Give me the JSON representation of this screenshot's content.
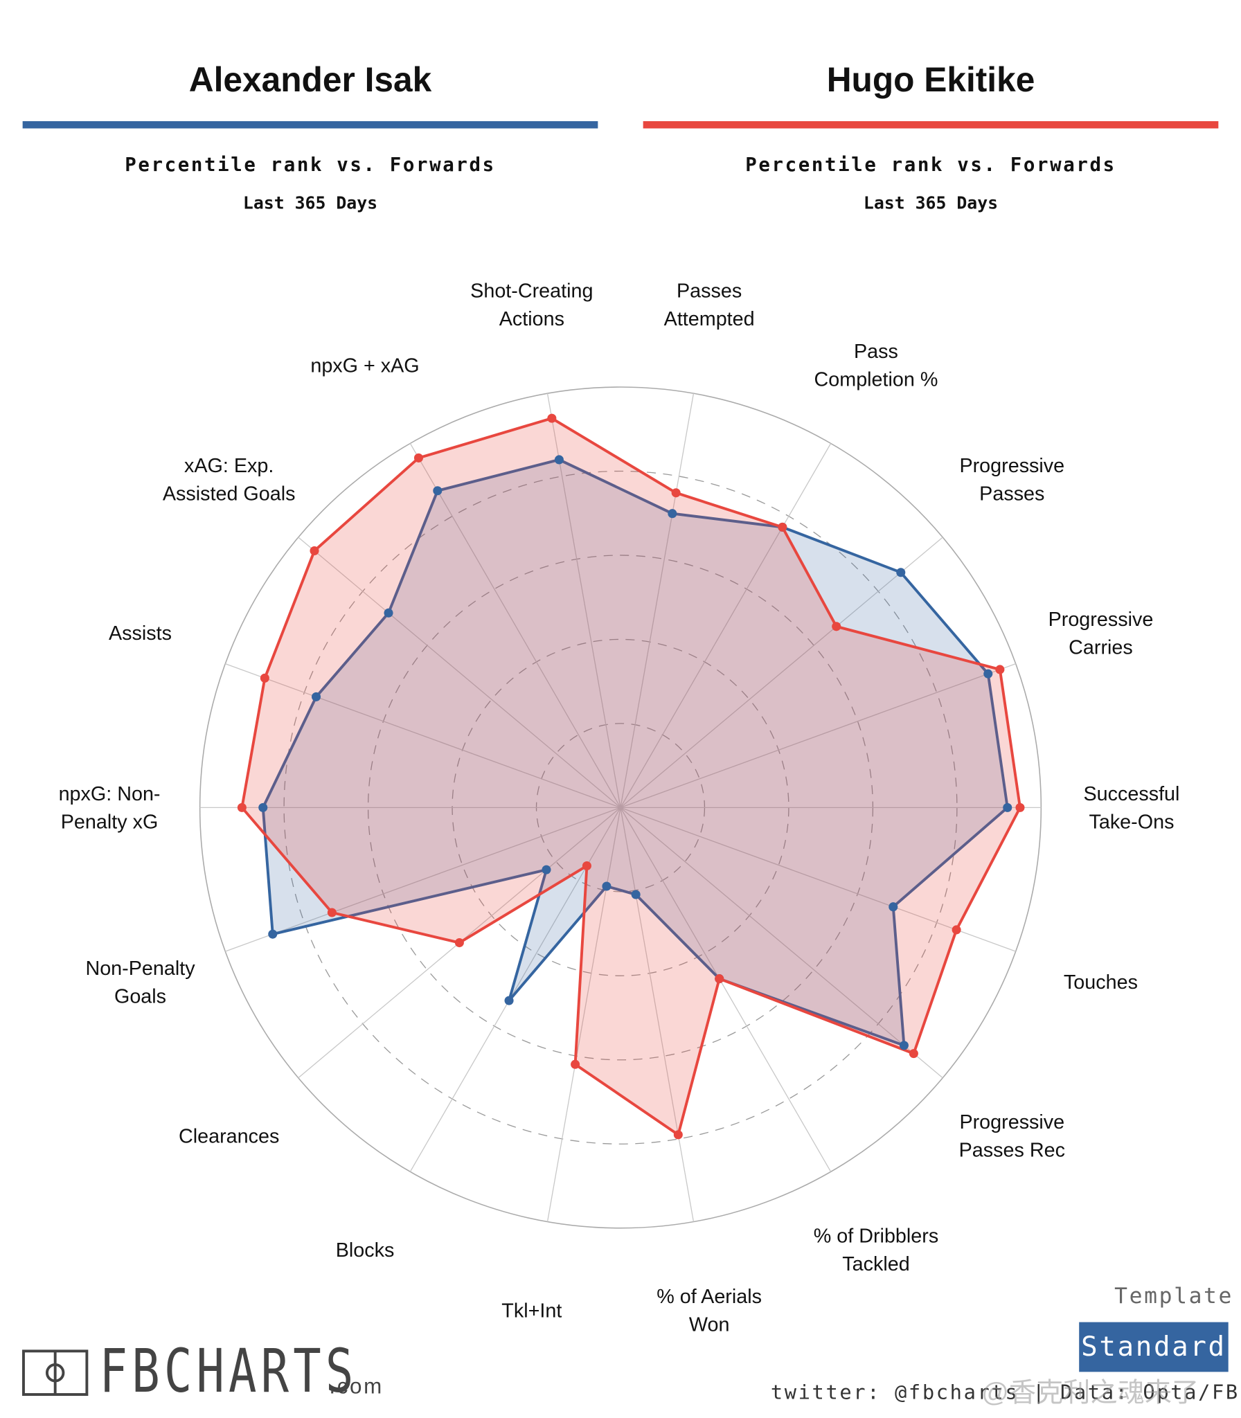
{
  "header": {
    "subtitle": "Percentile rank vs. Forwards",
    "period": "Last 365 Days"
  },
  "chart_data": {
    "type": "radar",
    "categories": [
      "Passes\nAttempted",
      "Pass\nCompletion %",
      "Progressive\nPasses",
      "Progressive\nCarries",
      "Successful\nTake-Ons",
      "Touches",
      "Progressive\nPasses Rec",
      "% of Dribblers\nTackled",
      "% of Aerials\nWon",
      "Tkl+Int",
      "Blocks",
      "Clearances",
      "Non-Penalty\nGoals",
      "npxG: Non-\nPenalty xG",
      "Assists",
      "xAG: Exp.\nAssisted Goals",
      "npxG + xAG",
      "Shot-Creating\nActions"
    ],
    "series": [
      {
        "name": "Alexander Isak",
        "color": "#3565a0",
        "values": [
          71,
          77,
          87,
          93,
          92,
          69,
          88,
          47,
          21,
          19,
          53,
          23,
          88,
          85,
          77,
          72,
          87,
          84
        ]
      },
      {
        "name": "Hugo Ekitike",
        "color": "#e8473f",
        "values": [
          76,
          77,
          67,
          96,
          95,
          85,
          91,
          47,
          79,
          62,
          16,
          50,
          73,
          90,
          90,
          95,
          96,
          94
        ]
      }
    ],
    "rlim": [
      0,
      100
    ],
    "rticks": [
      20,
      40,
      60,
      80,
      100
    ],
    "grid": true
  },
  "footer": {
    "template_label": "Template",
    "template": "Standard",
    "brand": "FBCHARTS",
    "brand_suffix": ".com",
    "credit": "twitter: @fbcharts | Data: Opta/FBref",
    "watermark": "@香克利之魂来了"
  }
}
